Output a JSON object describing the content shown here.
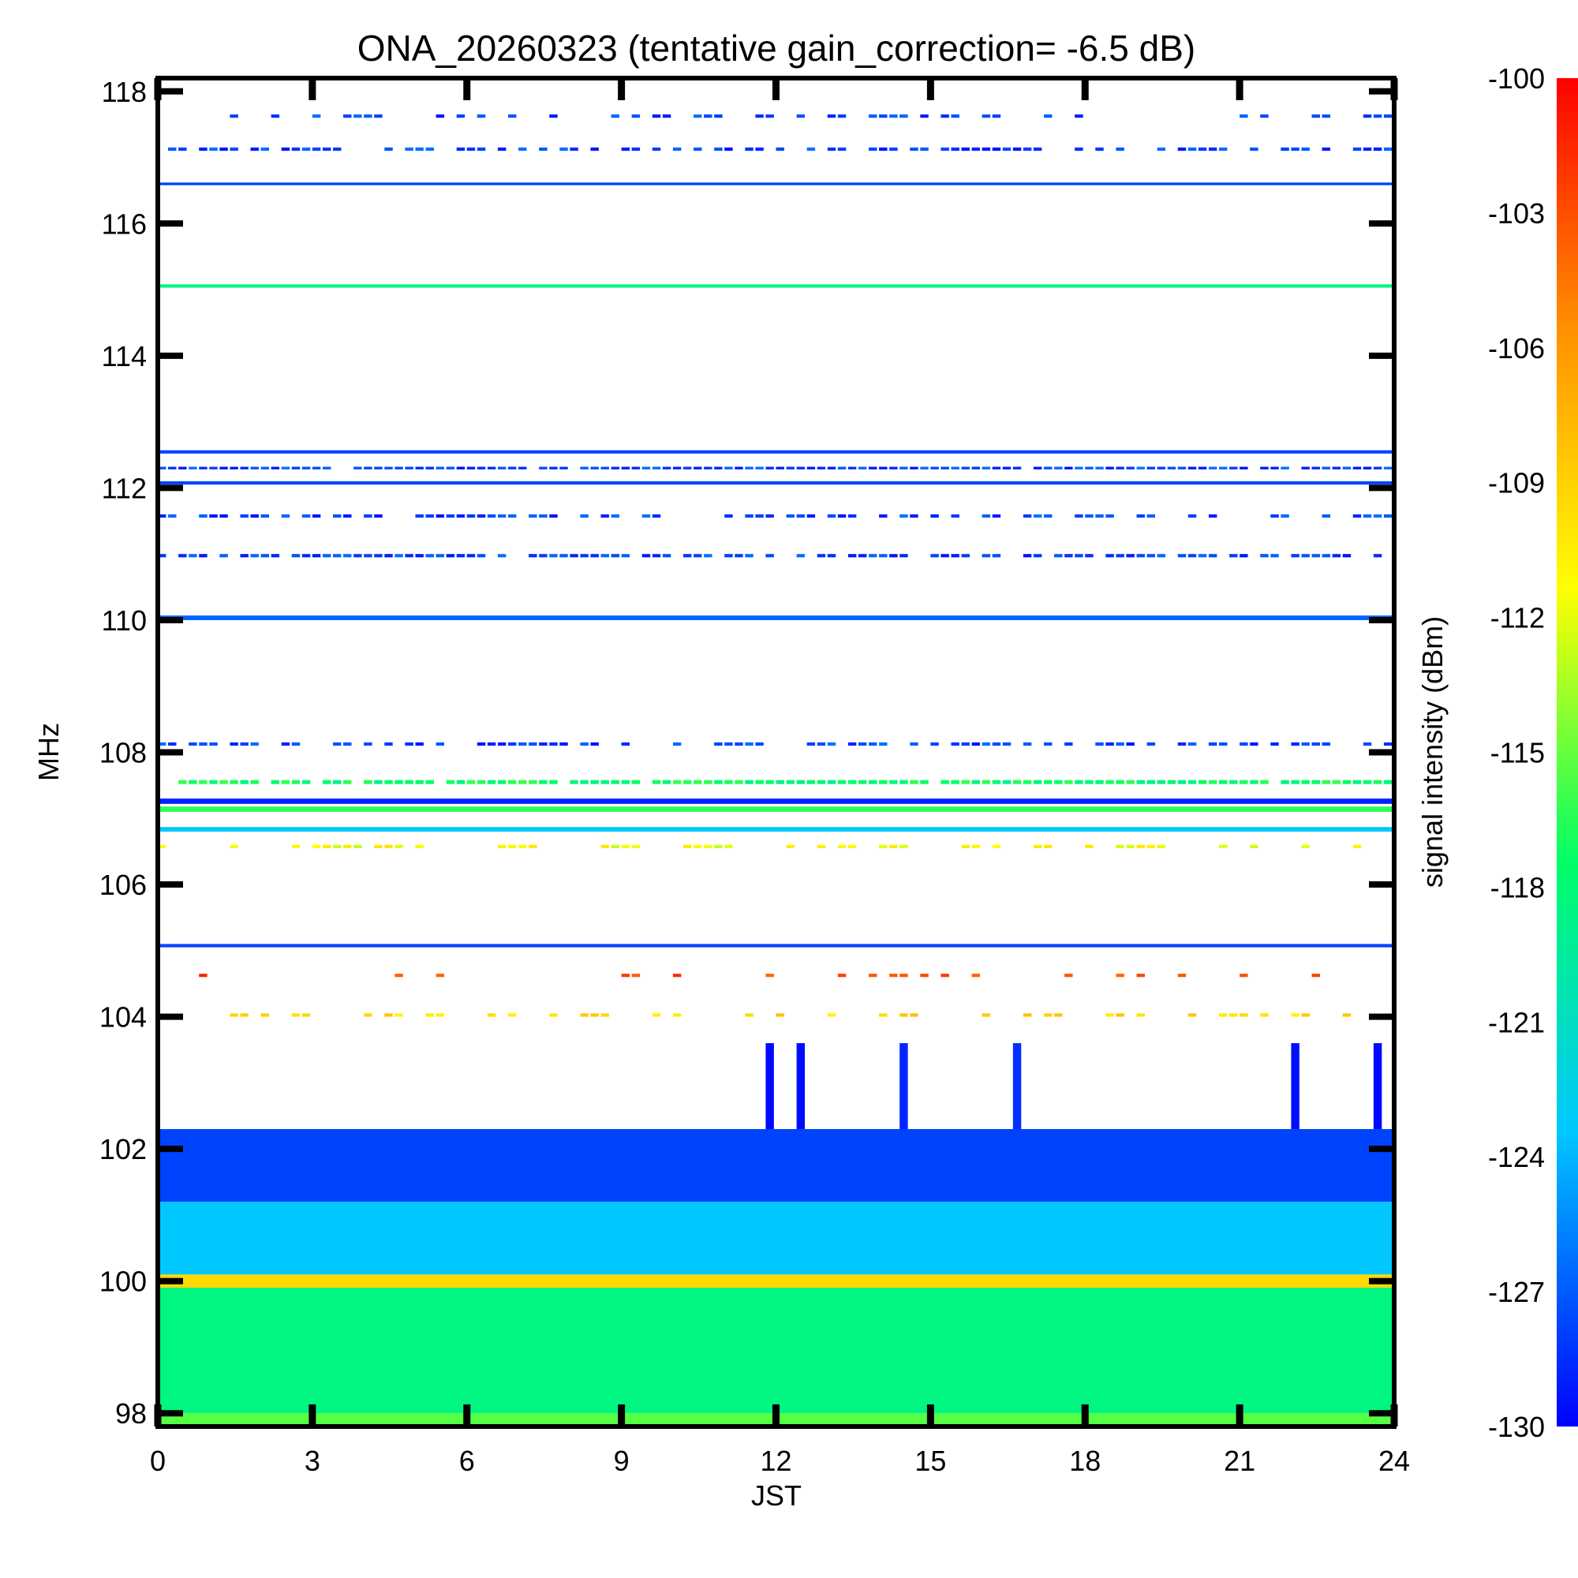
{
  "chart_data": {
    "type": "heatmap",
    "title": "ONA_20260323 (tentative gain_correction= -6.5 dB)",
    "xlabel": "JST",
    "ylabel": "MHz",
    "colorbar_label": "signal intensity (dBm)",
    "xlim": [
      0,
      24
    ],
    "ylim": [
      97.8,
      118.2
    ],
    "x_ticks": [
      "0",
      "3",
      "6",
      "9",
      "12",
      "15",
      "18",
      "21",
      "24"
    ],
    "y_ticks": [
      "98",
      "100",
      "102",
      "104",
      "106",
      "108",
      "110",
      "112",
      "114",
      "116",
      "118"
    ],
    "colorbar_range": [
      -130,
      -100
    ],
    "colorbar_ticks": [
      "-100",
      "-103",
      "-106",
      "-109",
      "-112",
      "-115",
      "-118",
      "-121",
      "-124",
      "-127",
      "-130"
    ],
    "colormap": [
      "#0000ff",
      "#00c8ff",
      "#00ff66",
      "#ffff00",
      "#ff8c00",
      "#ff0000"
    ],
    "bands": [
      {
        "freq_start": 97.8,
        "freq_end": 98.0,
        "dbm": -116,
        "coverage": 1.0
      },
      {
        "freq_start": 98.0,
        "freq_end": 99.9,
        "dbm": -119,
        "coverage": 1.0
      },
      {
        "freq_start": 99.9,
        "freq_end": 100.1,
        "dbm": -110,
        "coverage": 1.0
      },
      {
        "freq_start": 100.1,
        "freq_end": 101.2,
        "dbm": -124,
        "coverage": 1.0
      },
      {
        "freq_start": 101.2,
        "freq_end": 102.3,
        "dbm": -128,
        "coverage": 1.0
      },
      {
        "freq_start": 102.3,
        "freq_end": 103.6,
        "dbm": -129,
        "coverage": 0.08
      },
      {
        "freq_start": 104.0,
        "freq_end": 104.05,
        "dbm": -110,
        "coverage": 0.35
      },
      {
        "freq_start": 104.6,
        "freq_end": 104.65,
        "dbm": -103,
        "coverage": 0.12
      },
      {
        "freq_start": 105.05,
        "freq_end": 105.1,
        "dbm": -128,
        "coverage": 1.0
      },
      {
        "freq_start": 106.55,
        "freq_end": 106.6,
        "dbm": -112,
        "coverage": 0.4
      },
      {
        "freq_start": 106.8,
        "freq_end": 106.87,
        "dbm": -124,
        "coverage": 1.0
      },
      {
        "freq_start": 107.1,
        "freq_end": 107.18,
        "dbm": -117,
        "coverage": 1.0
      },
      {
        "freq_start": 107.22,
        "freq_end": 107.3,
        "dbm": -129,
        "coverage": 1.0
      },
      {
        "freq_start": 107.52,
        "freq_end": 107.58,
        "dbm": -118,
        "coverage": 0.9
      },
      {
        "freq_start": 108.1,
        "freq_end": 108.15,
        "dbm": -128,
        "coverage": 0.6
      },
      {
        "freq_start": 110.0,
        "freq_end": 110.07,
        "dbm": -127,
        "coverage": 1.0
      },
      {
        "freq_start": 110.95,
        "freq_end": 111.0,
        "dbm": -128,
        "coverage": 0.75
      },
      {
        "freq_start": 111.55,
        "freq_end": 111.6,
        "dbm": -128,
        "coverage": 0.6
      },
      {
        "freq_start": 112.05,
        "freq_end": 112.1,
        "dbm": -128,
        "coverage": 1.0
      },
      {
        "freq_start": 112.28,
        "freq_end": 112.32,
        "dbm": -128,
        "coverage": 0.9
      },
      {
        "freq_start": 112.52,
        "freq_end": 112.57,
        "dbm": -128,
        "coverage": 1.0
      },
      {
        "freq_start": 115.03,
        "freq_end": 115.08,
        "dbm": -119,
        "coverage": 1.0
      },
      {
        "freq_start": 116.58,
        "freq_end": 116.62,
        "dbm": -128,
        "coverage": 1.0
      },
      {
        "freq_start": 117.1,
        "freq_end": 117.15,
        "dbm": -128,
        "coverage": 0.6
      },
      {
        "freq_start": 117.6,
        "freq_end": 117.65,
        "dbm": -128,
        "coverage": 0.35
      }
    ]
  }
}
